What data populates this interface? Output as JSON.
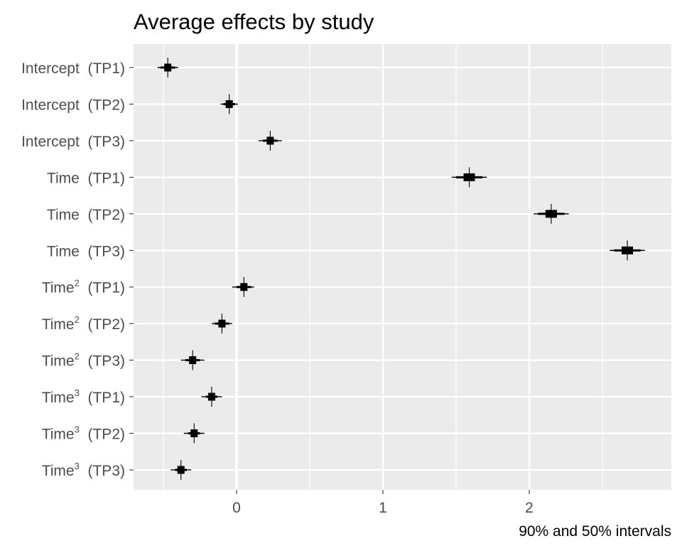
{
  "chart_data": {
    "type": "interval-dot",
    "title": "Average effects by study",
    "caption": "90% and 50% intervals",
    "x_ticks": [
      "0",
      "1",
      "2"
    ],
    "xlim": [
      -0.7,
      2.95
    ],
    "grid": true,
    "rows": [
      {
        "term": "Intercept",
        "sup": "",
        "study": "(TP1)",
        "mean": -0.47,
        "inner": [
          -0.52,
          -0.42
        ],
        "outer": [
          -0.54,
          -0.4
        ]
      },
      {
        "term": "Intercept",
        "sup": "",
        "study": "(TP2)",
        "mean": -0.05,
        "inner": [
          -0.09,
          -0.01
        ],
        "outer": [
          -0.11,
          0.01
        ]
      },
      {
        "term": "Intercept",
        "sup": "",
        "study": "(TP3)",
        "mean": 0.23,
        "inner": [
          0.18,
          0.28
        ],
        "outer": [
          0.15,
          0.31
        ]
      },
      {
        "term": "Time",
        "sup": "",
        "study": "(TP1)",
        "mean": 1.59,
        "inner": [
          1.5,
          1.68
        ],
        "outer": [
          1.47,
          1.71
        ]
      },
      {
        "term": "Time",
        "sup": "",
        "study": "(TP2)",
        "mean": 2.15,
        "inner": [
          2.06,
          2.24
        ],
        "outer": [
          2.03,
          2.27
        ]
      },
      {
        "term": "Time",
        "sup": "",
        "study": "(TP3)",
        "mean": 2.67,
        "inner": [
          2.58,
          2.76
        ],
        "outer": [
          2.55,
          2.79
        ]
      },
      {
        "term": "Time",
        "sup": "2",
        "study": "(TP1)",
        "mean": 0.05,
        "inner": [
          0.0,
          0.1
        ],
        "outer": [
          -0.03,
          0.12
        ]
      },
      {
        "term": "Time",
        "sup": "2",
        "study": "(TP2)",
        "mean": -0.1,
        "inner": [
          -0.15,
          -0.05
        ],
        "outer": [
          -0.17,
          -0.03
        ]
      },
      {
        "term": "Time",
        "sup": "2",
        "study": "(TP3)",
        "mean": -0.3,
        "inner": [
          -0.35,
          -0.25
        ],
        "outer": [
          -0.38,
          -0.22
        ]
      },
      {
        "term": "Time",
        "sup": "3",
        "study": "(TP1)",
        "mean": -0.17,
        "inner": [
          -0.21,
          -0.13
        ],
        "outer": [
          -0.24,
          -0.1
        ]
      },
      {
        "term": "Time",
        "sup": "3",
        "study": "(TP2)",
        "mean": -0.29,
        "inner": [
          -0.33,
          -0.25
        ],
        "outer": [
          -0.36,
          -0.22
        ]
      },
      {
        "term": "Time",
        "sup": "3",
        "study": "(TP3)",
        "mean": -0.38,
        "inner": [
          -0.42,
          -0.34
        ],
        "outer": [
          -0.45,
          -0.31
        ]
      }
    ]
  },
  "colors": {
    "panel_bg": "#ebebeb",
    "grid_major": "#ffffff",
    "zero_line": "#ffffff",
    "mark": "#000000",
    "tick_text": "#4d4d4d",
    "title_text": "#000000"
  }
}
